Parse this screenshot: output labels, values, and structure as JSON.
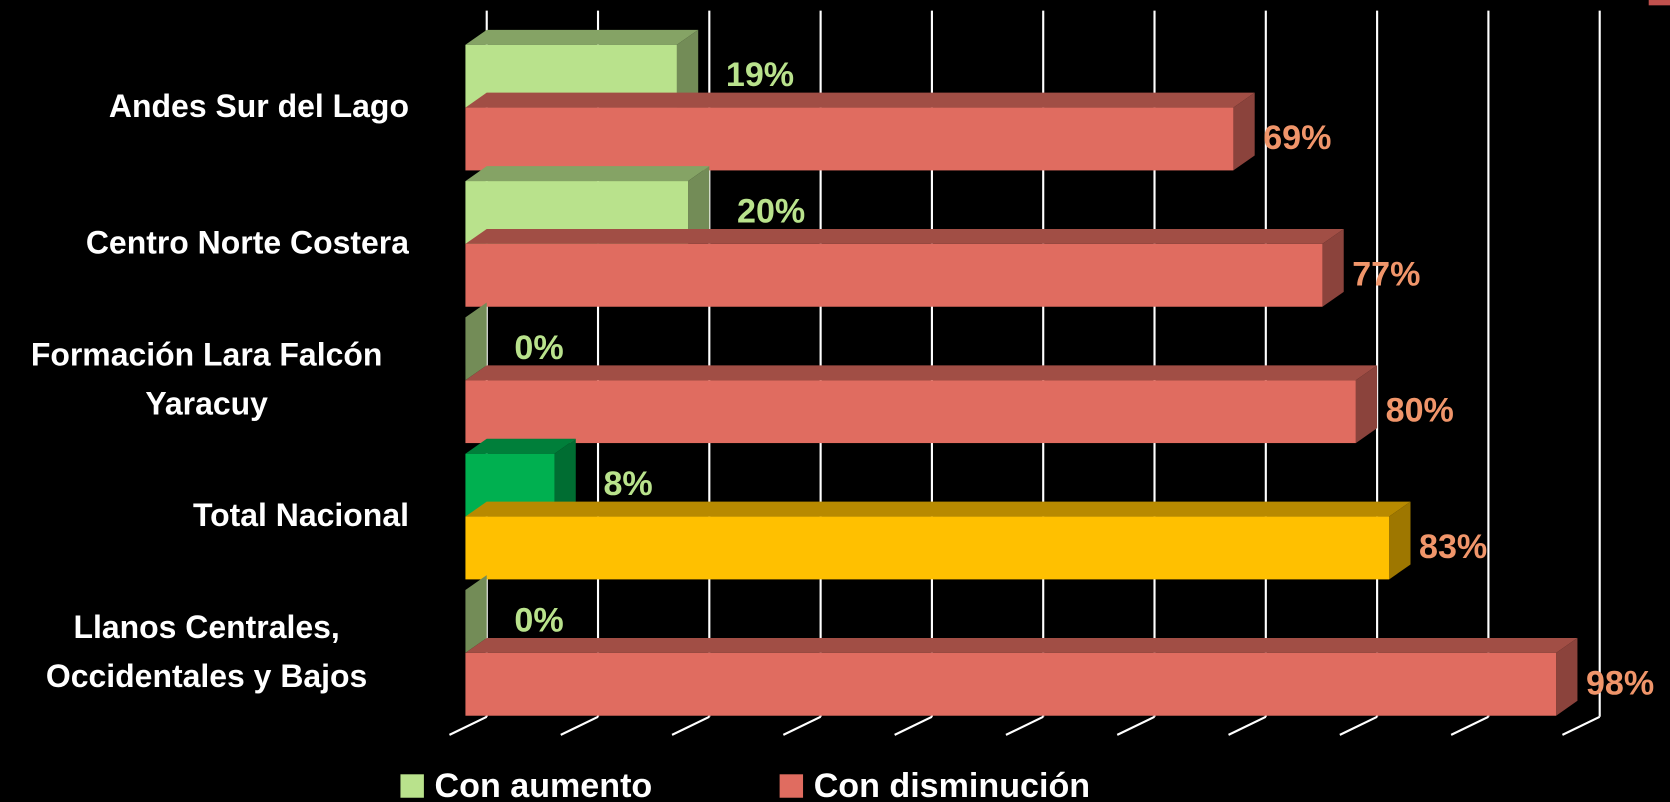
{
  "chart_data": {
    "type": "bar3d_horizontal",
    "categories": [
      "Andes Sur del Lago",
      "Centro Norte Costera",
      "Formación Lara Falcón Yaracuy",
      "Total Nacional",
      "Llanos Centrales, Occidentales y Bajos"
    ],
    "series": [
      {
        "name": "Con aumento",
        "color": "#b9e28c",
        "colors": [
          "#b9e28c",
          "#b9e28c",
          "#b9e28c",
          "#00b050",
          "#b9e28c"
        ],
        "label_color": "#b9e28c",
        "values": [
          19,
          20,
          0,
          8,
          0
        ],
        "value_labels": [
          "19%",
          "20%",
          "0%",
          "8%",
          "0%"
        ]
      },
      {
        "name": "Con disminución",
        "color": "#e06c60",
        "colors": [
          "#e06c60",
          "#e06c60",
          "#e06c60",
          "#ffc000",
          "#e06c60"
        ],
        "label_color": "#f0956a",
        "values": [
          69,
          77,
          80,
          83,
          98
        ],
        "value_labels": [
          "69%",
          "77%",
          "80%",
          "83%",
          "98%"
        ]
      }
    ],
    "xlim": [
      0,
      100
    ],
    "xticks": [
      0,
      10,
      20,
      30,
      40,
      50,
      60,
      70,
      80,
      90,
      100
    ],
    "grid": true
  }
}
